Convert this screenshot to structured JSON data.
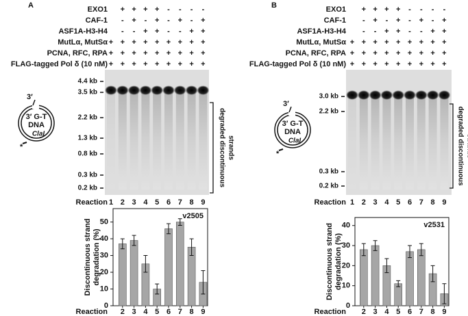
{
  "panels": [
    {
      "label": "A",
      "conditions": [
        {
          "name": "EXO1",
          "marks": [
            null,
            "+",
            "+",
            "+",
            "+",
            "-",
            "-",
            "-",
            "-"
          ]
        },
        {
          "name": "CAF-1",
          "marks": [
            null,
            "-",
            "+",
            "-",
            "+",
            "-",
            "+",
            "-",
            "+"
          ]
        },
        {
          "name": "ASF1A-H3-H4",
          "marks": [
            null,
            "-",
            "-",
            "+",
            "+",
            "-",
            "-",
            "+",
            "+"
          ]
        },
        {
          "name": "MutLα, MutSα",
          "marks": [
            "+",
            "+",
            "+",
            "+",
            "+",
            "+",
            "+",
            "+",
            "+"
          ]
        },
        {
          "name": "PCNA, RFC, RPA",
          "marks": [
            "+",
            "+",
            "+",
            "+",
            "+",
            "+",
            "+",
            "+",
            "+"
          ]
        },
        {
          "name": "FLAG-tagged Pol δ (10 nM)",
          "marks": [
            "+",
            "+",
            "+",
            "+",
            "+",
            "+",
            "+",
            "+",
            "+"
          ]
        }
      ],
      "size_markers": [
        "4.4 kb",
        "3.5 kb",
        "2.2 kb",
        "1.3 kb",
        "0.8 kb",
        "0.3 kb",
        "0.2 kb"
      ],
      "side_label": [
        "degraded discontinuous",
        "strands"
      ],
      "lane_label": "Reaction",
      "lanes": [
        "1",
        "2",
        "3",
        "4",
        "5",
        "6",
        "7",
        "8",
        "9"
      ],
      "diagram": {
        "end": "3′",
        "title": "3′ G-T",
        "subtitle": "DNA",
        "site": "ClaI",
        "label": "*"
      }
    },
    {
      "label": "B",
      "conditions": [
        {
          "name": "EXO1",
          "marks": [
            null,
            "+",
            "+",
            "+",
            "+",
            "-",
            "-",
            "-",
            "-"
          ]
        },
        {
          "name": "CAF-1",
          "marks": [
            null,
            "-",
            "+",
            "-",
            "+",
            "-",
            "+",
            "-",
            "+"
          ]
        },
        {
          "name": "ASF1A-H3-H4",
          "marks": [
            null,
            "-",
            "-",
            "+",
            "+",
            "-",
            "-",
            "+",
            "+"
          ]
        },
        {
          "name": "MutLα, MutSα",
          "marks": [
            "+",
            "+",
            "+",
            "+",
            "+",
            "+",
            "+",
            "+",
            "+"
          ]
        },
        {
          "name": "PCNA, RFC, RPA",
          "marks": [
            "+",
            "+",
            "+",
            "+",
            "+",
            "+",
            "+",
            "+",
            "+"
          ]
        },
        {
          "name": "FLAG-tagged Pol δ (10 nM)",
          "marks": [
            "+",
            "+",
            "+",
            "+",
            "+",
            "+",
            "+",
            "+",
            "+"
          ]
        }
      ],
      "size_markers": [
        "3.0 kb",
        "2.2 kb",
        "0.3 kb",
        "0.2 kb"
      ],
      "side_label": [
        "degraded discontinuous",
        "strands"
      ],
      "lane_label": "Reaction",
      "lanes": [
        "1",
        "2",
        "3",
        "4",
        "5",
        "6",
        "7",
        "8",
        "9"
      ],
      "diagram": {
        "end": "3′",
        "title": "3′ G-T",
        "subtitle": "DNA",
        "site": "ClaI",
        "label": "*"
      }
    }
  ],
  "chart_data": [
    {
      "type": "bar",
      "annotation": "v2505",
      "ylabel": [
        "Discontinuous strand",
        "degradation (%)"
      ],
      "xlabel": "Reaction",
      "categories": [
        "2",
        "3",
        "4",
        "5",
        "6",
        "7",
        "8",
        "9"
      ],
      "values": [
        37,
        39,
        25,
        10,
        46,
        50,
        35,
        14
      ],
      "errors": [
        3,
        3,
        5,
        3,
        3,
        2,
        5,
        7
      ],
      "color": "#a6a6a6",
      "ylim": [
        0,
        58
      ],
      "yticks": [
        0,
        10,
        20,
        30,
        40,
        50
      ]
    },
    {
      "type": "bar",
      "annotation": "v2531",
      "ylabel": [
        "Discontinuous strand",
        "degradation (%)"
      ],
      "xlabel": "Reaction",
      "categories": [
        "2",
        "3",
        "4",
        "5",
        "6",
        "7",
        "8",
        "9"
      ],
      "values": [
        28,
        30,
        20,
        11,
        27,
        28,
        16,
        6
      ],
      "errors": [
        3,
        2.5,
        3.5,
        1.5,
        3,
        3,
        4,
        5
      ],
      "color": "#a6a6a6",
      "ylim": [
        0,
        44
      ],
      "yticks": [
        0,
        10,
        20,
        30,
        40
      ]
    }
  ]
}
